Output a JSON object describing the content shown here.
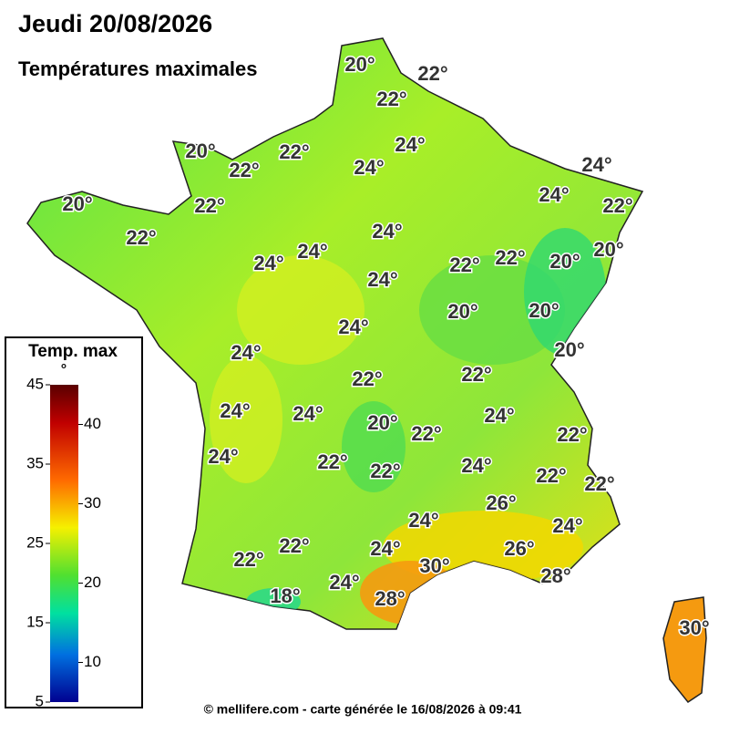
{
  "header": {
    "title": "Jeudi 20/08/2026",
    "subtitle": "Températures maximales"
  },
  "map": {
    "labels": [
      "20°",
      "22°",
      "22°",
      "20°",
      "22°",
      "22°",
      "24°",
      "24°",
      "24°",
      "20°",
      "22°",
      "24°",
      "22°",
      "22°",
      "24°",
      "24°",
      "24°",
      "22°",
      "22°",
      "20°",
      "20°",
      "24°",
      "20°",
      "20°",
      "24°",
      "24°",
      "20°",
      "22°",
      "22°",
      "24°",
      "24°",
      "20°",
      "22°",
      "24°",
      "22°",
      "24°",
      "22°",
      "22°",
      "24°",
      "22°",
      "22°",
      "26°",
      "24°",
      "24°",
      "22°",
      "22°",
      "24°",
      "26°",
      "30°",
      "28°",
      "24°",
      "18°",
      "28°",
      "30°"
    ]
  },
  "legend": {
    "title": "Temp. max",
    "unit": "°",
    "left_ticks": [
      45,
      35,
      25,
      15,
      5
    ],
    "right_ticks": [
      40,
      30,
      20,
      10
    ]
  },
  "footer": "© mellifere.com - carte générée le 16/08/2026 à 09:41"
}
